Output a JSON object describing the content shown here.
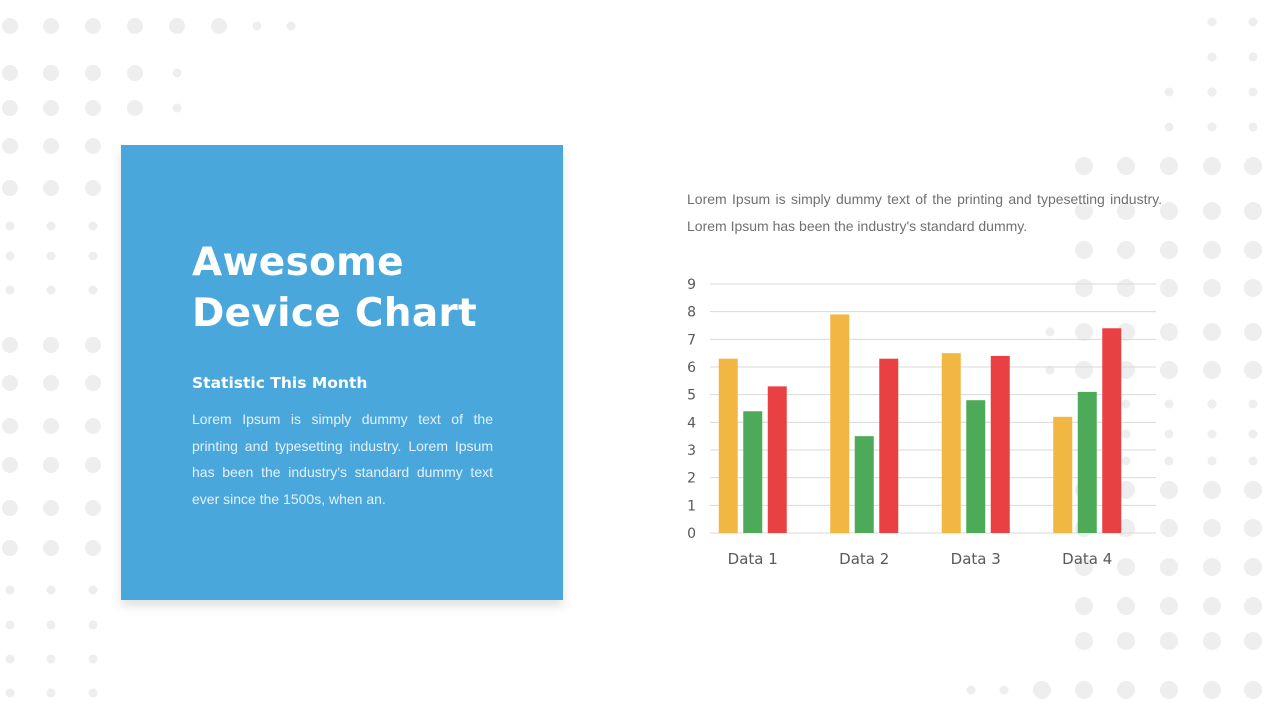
{
  "colors": {
    "card_background": "#4aa7dc",
    "dot_pattern": "#eeeeee",
    "series": [
      "#f2b642",
      "#4caa59",
      "#e84043"
    ],
    "gridline": "#d9d9d9",
    "tick_label": "#595959"
  },
  "card": {
    "title_lines": [
      "Awesome",
      "Device Chart"
    ],
    "subtitle": "Statistic  This Month",
    "body": "Lorem Ipsum is simply dummy text of the printing and typesetting industry. Lorem Ipsum has been the industry's standard dummy text ever since the 1500s,  when an."
  },
  "intro_text": "Lorem Ipsum is simply dummy text of the printing and typesetting industry. Lorem Ipsum has been the industry's standard dummy.",
  "chart_data": {
    "type": "bar",
    "categories": [
      "Data 1",
      "Data 2",
      "Data 3",
      "Data 4"
    ],
    "series": [
      {
        "values": [
          6.3,
          7.9,
          6.5,
          4.2
        ]
      },
      {
        "values": [
          4.4,
          3.5,
          4.8,
          5.1
        ]
      },
      {
        "values": [
          5.3,
          6.3,
          6.4,
          7.4
        ]
      }
    ],
    "yticks": [
      "0",
      "1",
      "2",
      "3",
      "4",
      "5",
      "6",
      "7",
      "8",
      "9"
    ],
    "ylim": [
      0,
      9
    ],
    "grid": true,
    "legend": "none"
  }
}
